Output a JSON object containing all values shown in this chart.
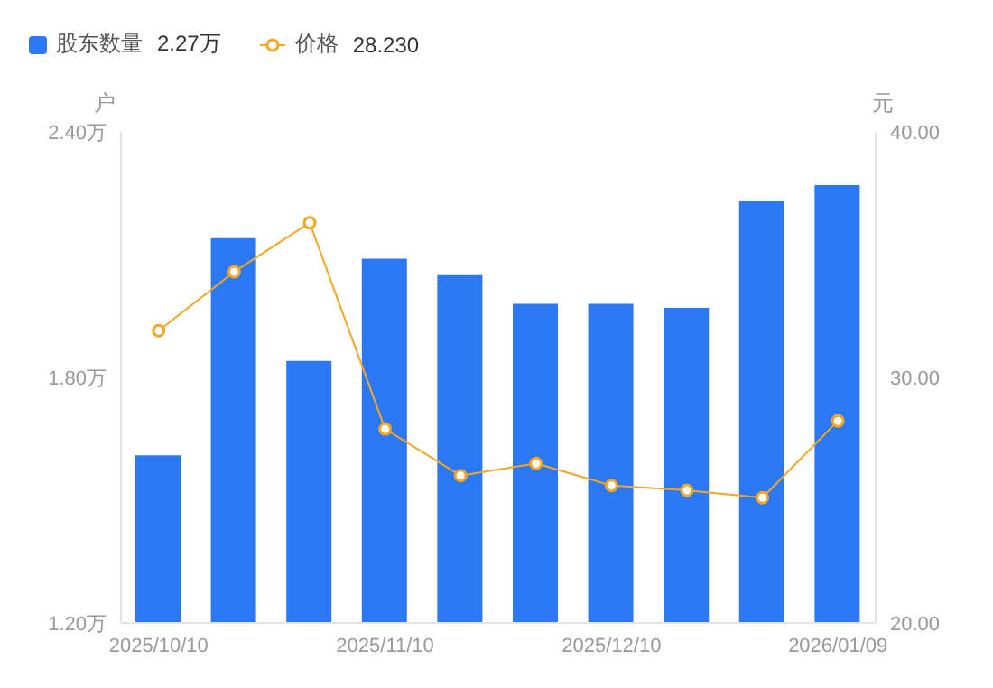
{
  "chart_data": {
    "type": "bar",
    "categories": [
      "2025/10/10",
      null,
      null,
      "2025/11/10",
      null,
      null,
      "2025/12/10",
      null,
      null,
      "2026/01/09"
    ],
    "series": [
      {
        "name": "股东数量",
        "color": "#2b78f2",
        "values": [
          1.61,
          2.14,
          1.84,
          2.09,
          2.05,
          1.98,
          1.98,
          1.97,
          2.23,
          2.27
        ]
      },
      {
        "name": "价格",
        "type": "line",
        "axis": "y2",
        "color": "#f5a623",
        "values": [
          31.9,
          34.3,
          36.3,
          27.9,
          26.0,
          26.5,
          25.6,
          25.4,
          25.1,
          28.23
        ]
      }
    ],
    "annotations": [
      "2.27万",
      "28.230"
    ],
    "ylabel": "户",
    "y2label": "元",
    "ylim": [
      1.2,
      2.4
    ],
    "yticks": [
      {
        "value": 1.2,
        "label": "1.20万"
      },
      {
        "value": 1.8,
        "label": "1.80万"
      },
      {
        "value": 2.4,
        "label": "2.40万"
      }
    ],
    "y2lim": [
      20,
      40
    ],
    "y2ticks": [
      {
        "value": 20,
        "label": "20.00"
      },
      {
        "value": 30,
        "label": "30.00"
      },
      {
        "value": 40,
        "label": "40.00"
      }
    ],
    "marker": "circle",
    "legend": "top left"
  }
}
